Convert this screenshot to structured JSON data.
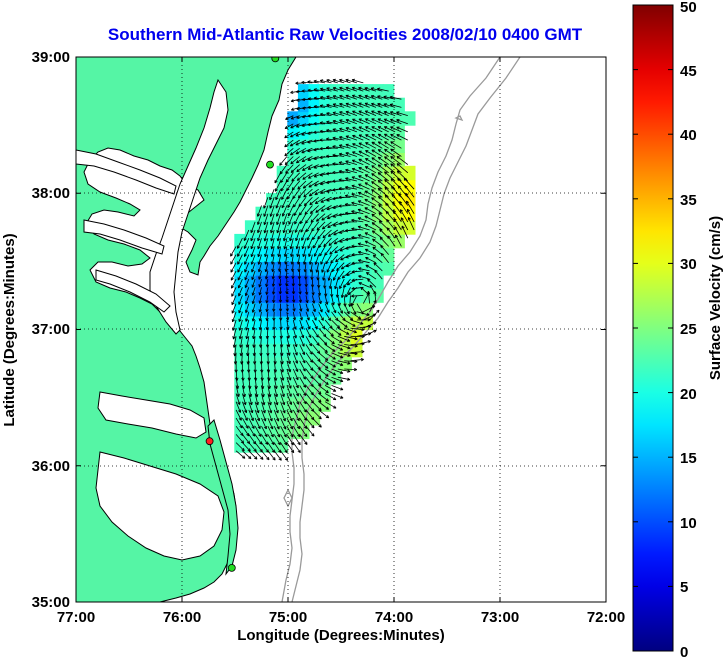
{
  "chart_data": {
    "type": "vector-field",
    "title": "Southern Mid-Atlantic Raw Velocities 2008/02/10 0400 GMT",
    "xlabel": "Longitude (Degrees:Minutes)",
    "ylabel": "Latitude (Degrees:Minutes)",
    "x_tick_labels": [
      "77:00",
      "76:00",
      "75:00",
      "74:00",
      "73:00",
      "72:00"
    ],
    "x_tick_values": [
      -77,
      -76,
      -75,
      -74,
      -73,
      -72
    ],
    "y_tick_labels": [
      "39:00",
      "38:00",
      "37:00",
      "36:00",
      "35:00"
    ],
    "y_tick_values": [
      39,
      38,
      37,
      36,
      35
    ],
    "xlim": [
      -77,
      -72
    ],
    "ylim": [
      35,
      39
    ],
    "grid": true,
    "colorbar": {
      "label": "Surface Velocity (cm/s)",
      "range": [
        0,
        50
      ],
      "tick_labels": [
        "0",
        "5",
        "10",
        "15",
        "20",
        "25",
        "30",
        "35",
        "40",
        "45",
        "50"
      ],
      "tick_values": [
        0,
        5,
        10,
        15,
        20,
        25,
        30,
        35,
        40,
        45,
        50
      ]
    },
    "colors": {
      "land": "#55f5a5",
      "coastline": "#000000",
      "bathymetry": "#9a9a9a",
      "station_active": "#22dd22",
      "station_flagged": "#ff2222",
      "arrow": "#000000"
    },
    "stations": [
      {
        "lon": -75.12,
        "lat": 38.99,
        "status": "active"
      },
      {
        "lon": -75.17,
        "lat": 38.21,
        "status": "active"
      },
      {
        "lon": -75.74,
        "lat": 36.18,
        "status": "flagged"
      },
      {
        "lon": -75.53,
        "lat": 35.25,
        "status": "active"
      }
    ]
  }
}
